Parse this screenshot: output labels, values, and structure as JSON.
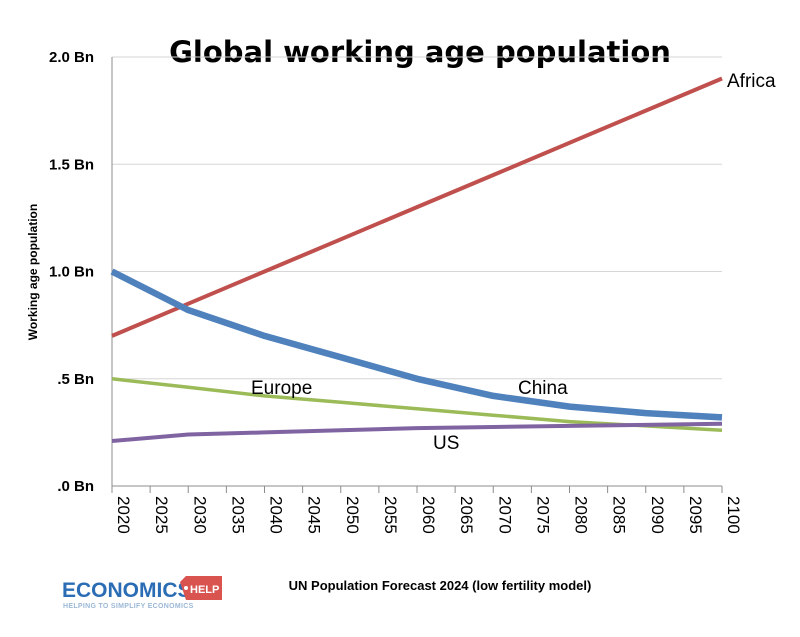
{
  "chart_data": {
    "type": "line",
    "title": "Global working age population",
    "ylabel": "Working age population",
    "xlabel": "",
    "x": [
      2020,
      2030,
      2040,
      2050,
      2060,
      2070,
      2080,
      2090,
      2100
    ],
    "x_ticks": [
      "2020",
      "2025",
      "2030",
      "2035",
      "2040",
      "2045",
      "2050",
      "2055",
      "2060",
      "2065",
      "2070",
      "2075",
      "2080",
      "2085",
      "2090",
      "2095",
      "2100"
    ],
    "xlim": [
      2020,
      2100
    ],
    "ylim": [
      0,
      2.0
    ],
    "y_ticks": [
      {
        "value": 0,
        "label": ".0 Bn"
      },
      {
        "value": 0.5,
        "label": ".5 Bn"
      },
      {
        "value": 1.0,
        "label": "1.0 Bn"
      },
      {
        "value": 1.5,
        "label": "1.5 Bn"
      },
      {
        "value": 2.0,
        "label": "2.0 Bn"
      }
    ],
    "grid": "horizontal",
    "series": [
      {
        "name": "Africa",
        "color": "#c0504d",
        "values": [
          0.7,
          0.85,
          1.0,
          1.15,
          1.3,
          1.45,
          1.6,
          1.75,
          1.9
        ]
      },
      {
        "name": "China",
        "color": "#4f81bd",
        "values": [
          1.0,
          0.82,
          0.7,
          0.6,
          0.5,
          0.42,
          0.37,
          0.34,
          0.32
        ]
      },
      {
        "name": "Europe",
        "color": "#9bbb59",
        "values": [
          0.5,
          0.46,
          0.42,
          0.39,
          0.36,
          0.33,
          0.3,
          0.28,
          0.26
        ]
      },
      {
        "name": "US",
        "color": "#8064a2",
        "values": [
          0.21,
          0.24,
          0.25,
          0.26,
          0.27,
          0.275,
          0.28,
          0.285,
          0.29
        ]
      }
    ],
    "source": "UN Population Forecast 2024 (low fertility model)"
  },
  "logo": {
    "text_a": "ECONOMICS",
    "text_b": "HELP",
    "tagline": "HELPING TO SIMPLIFY ECONOMICS",
    "color_a": "#2a6db5",
    "color_b": "#d9534f"
  }
}
